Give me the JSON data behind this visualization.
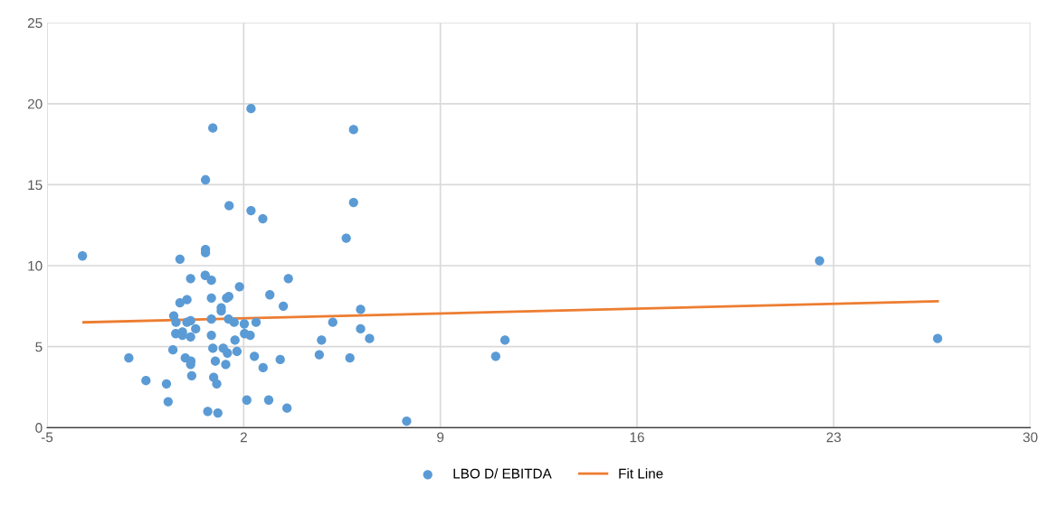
{
  "chart_data": {
    "type": "scatter",
    "xlim": [
      -5,
      30
    ],
    "xticks": [
      -5,
      2,
      9,
      16,
      23,
      30
    ],
    "ylim": [
      0,
      25
    ],
    "yticks": [
      0,
      5,
      10,
      15,
      20,
      25
    ],
    "grid": true,
    "legend": "bottom",
    "marker": "circle",
    "series": [
      {
        "name": "LBO D/ EBITDA",
        "color": "#5b9bd5",
        "x": [
          -3.74,
          2.26,
          7.8,
          10.97,
          11.3,
          22.5,
          26.7,
          0.9,
          5.91,
          0.64,
          1.48,
          2.26,
          2.68,
          5.91,
          5.65,
          0.64,
          0.64,
          -0.27,
          0.11,
          0.63,
          0.85,
          3.59,
          1.85,
          -0.27,
          -0.02,
          0.85,
          1.39,
          1.47,
          2.93,
          3.41,
          1.2,
          1.2,
          6.16,
          -0.49,
          -0.41,
          0.11,
          0.85,
          1.46,
          1.66,
          2.02,
          2.44,
          -0.02,
          0.29,
          5.17,
          -0.42,
          -0.18,
          -0.18,
          0.11,
          0.85,
          1.69,
          2.03,
          2.23,
          6.16,
          6.48,
          4.77,
          -0.52,
          0.9,
          1.27,
          1.42,
          1.76,
          -2.09,
          -0.08,
          0.12,
          0.11,
          0.99,
          1.36,
          2.38,
          3.3,
          4.69,
          5.78,
          2.69,
          -1.48,
          -0.75,
          0.15,
          0.93,
          1.04,
          -0.69,
          2.11,
          2.89,
          3.54,
          0.72,
          1.08
        ],
        "values": [
          10.6,
          19.7,
          0.4,
          4.4,
          5.4,
          10.3,
          5.5,
          18.5,
          18.4,
          15.3,
          13.7,
          13.4,
          12.9,
          13.9,
          11.7,
          11.0,
          10.8,
          10.4,
          9.2,
          9.4,
          9.1,
          9.2,
          8.7,
          7.7,
          7.9,
          8.0,
          8.0,
          8.1,
          8.2,
          7.5,
          7.4,
          7.2,
          7.3,
          6.9,
          6.5,
          6.6,
          6.7,
          6.7,
          6.5,
          6.4,
          6.5,
          6.5,
          6.1,
          6.5,
          5.8,
          5.9,
          5.7,
          5.6,
          5.7,
          5.4,
          5.8,
          5.7,
          6.1,
          5.5,
          5.4,
          4.8,
          4.9,
          4.9,
          4.6,
          4.7,
          4.3,
          4.3,
          4.1,
          3.9,
          4.1,
          3.9,
          4.4,
          4.2,
          4.5,
          4.3,
          3.7,
          2.9,
          2.7,
          3.2,
          3.1,
          2.7,
          1.6,
          1.7,
          1.7,
          1.2,
          1.0,
          0.9
        ]
      },
      {
        "name": "Fit Line",
        "color": "#ed7d31",
        "type": "line",
        "marker": "none",
        "line_style": "solid",
        "x": [
          -3.7,
          26.7
        ],
        "values": [
          6.5,
          7.8
        ]
      }
    ]
  }
}
